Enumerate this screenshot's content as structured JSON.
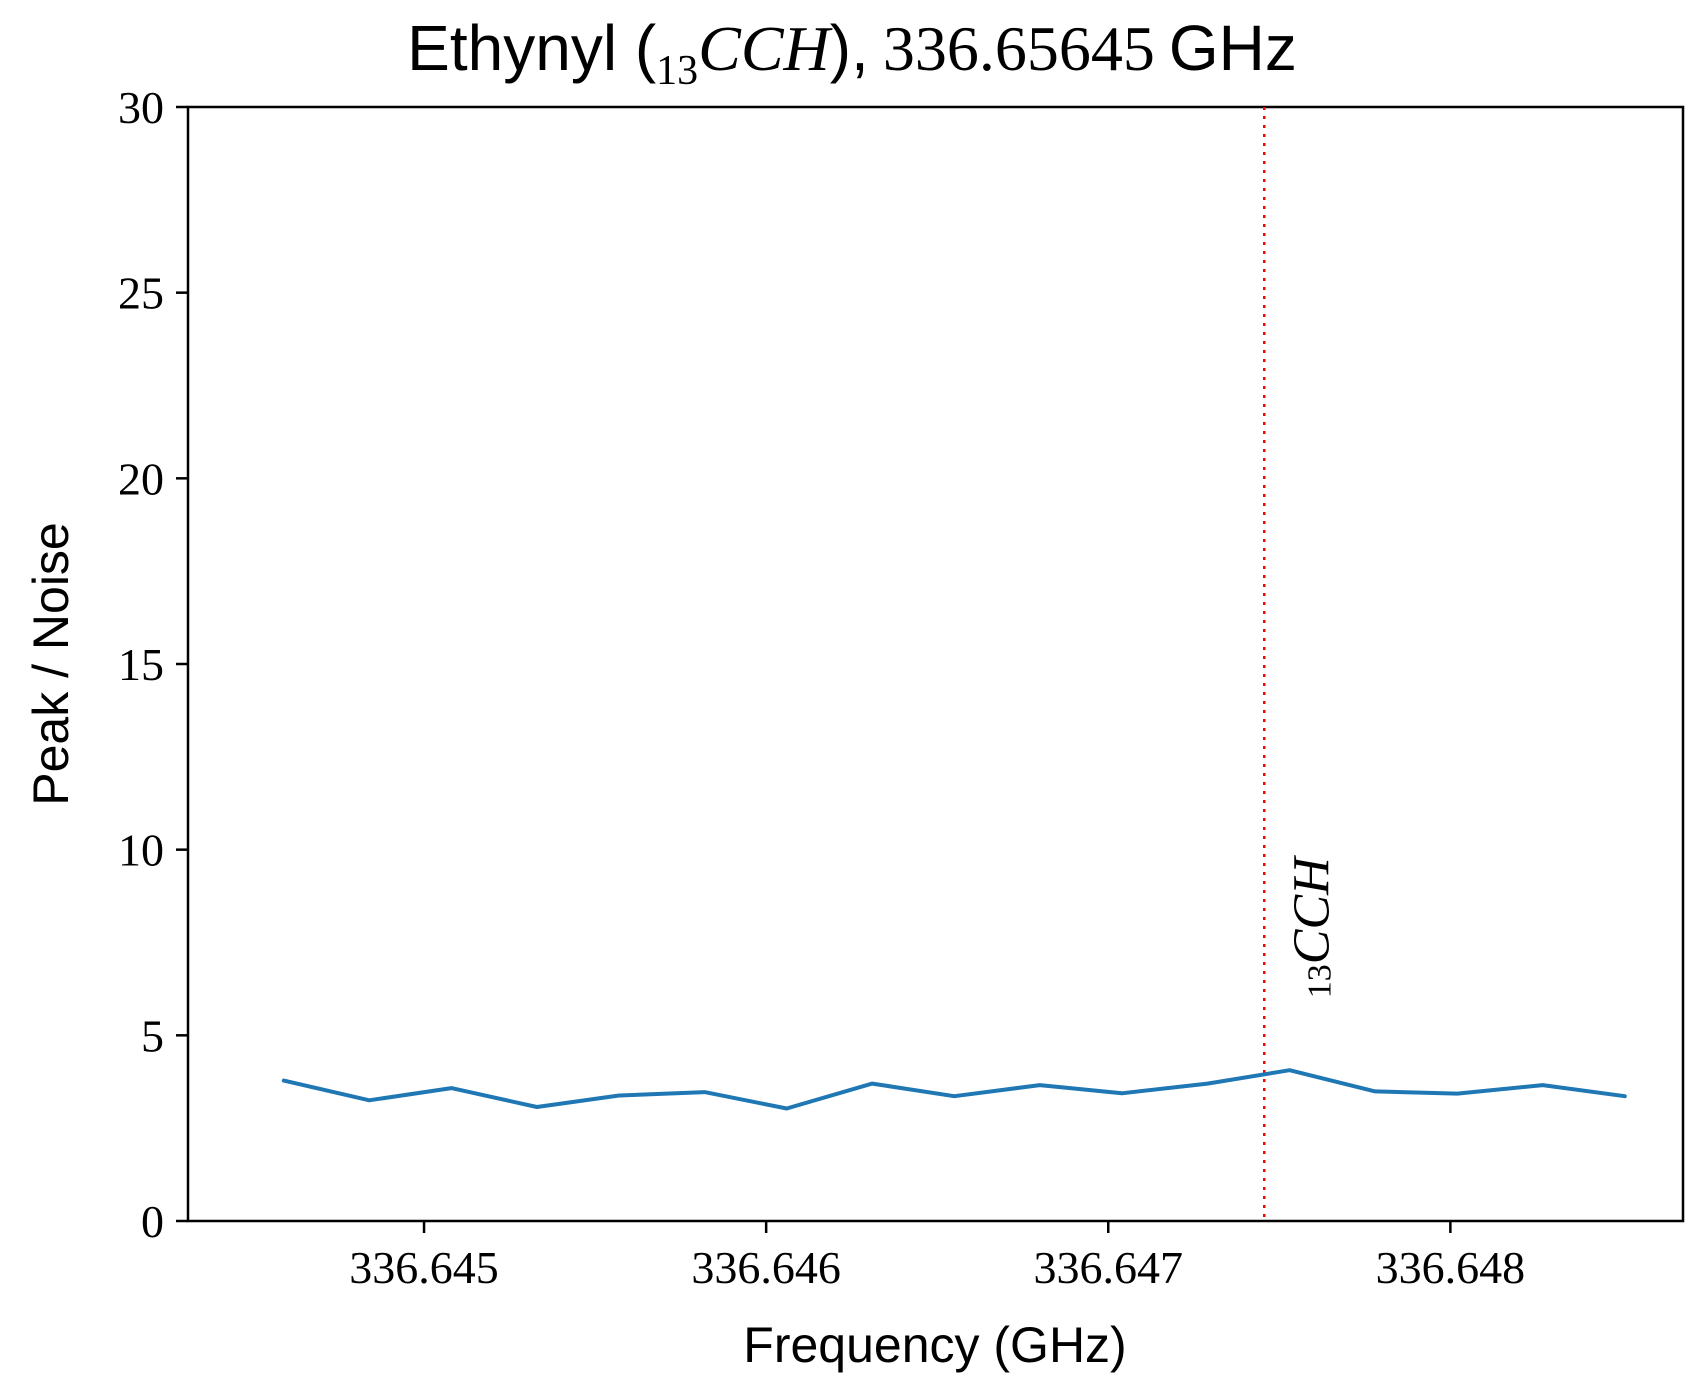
{
  "chart_data": {
    "type": "line",
    "title": {
      "prefix": "Ethynyl (",
      "species_sub": "13",
      "species_main": "CCH",
      "suffix": "),",
      "frequency": "336.65645",
      "unit": "GHz"
    },
    "xlabel": "Frequency (GHz)",
    "ylabel": "Peak / Noise",
    "xlim": [
      336.64431,
      336.64868
    ],
    "ylim": [
      0,
      30
    ],
    "xticks": [
      336.645,
      336.646,
      336.647,
      336.648
    ],
    "xtick_labels": [
      "336.645",
      "336.646",
      "336.647",
      "336.648"
    ],
    "yticks": [
      0,
      5,
      10,
      15,
      20,
      25,
      30
    ],
    "ytick_labels": [
      "0",
      "5",
      "10",
      "15",
      "20",
      "25",
      "30"
    ],
    "grid": false,
    "series": [
      {
        "color": "#1f77b4",
        "x": [
          336.64459,
          336.64484,
          336.64508,
          336.64533,
          336.64557,
          336.64582,
          336.64606,
          336.64631,
          336.64655,
          336.6468,
          336.64704,
          336.64729,
          336.64753,
          336.64778,
          336.64802,
          336.64827,
          336.64851
        ],
        "y": [
          3.78,
          3.25,
          3.58,
          3.07,
          3.38,
          3.47,
          3.03,
          3.7,
          3.36,
          3.66,
          3.44,
          3.7,
          4.06,
          3.49,
          3.43,
          3.66,
          3.36
        ]
      }
    ],
    "reference_line": {
      "x": 336.647456,
      "color": "#ff0000",
      "style": "dotted"
    },
    "annotation": {
      "sub": "13",
      "main": "CCH",
      "x": 336.64755,
      "y": 6
    }
  }
}
